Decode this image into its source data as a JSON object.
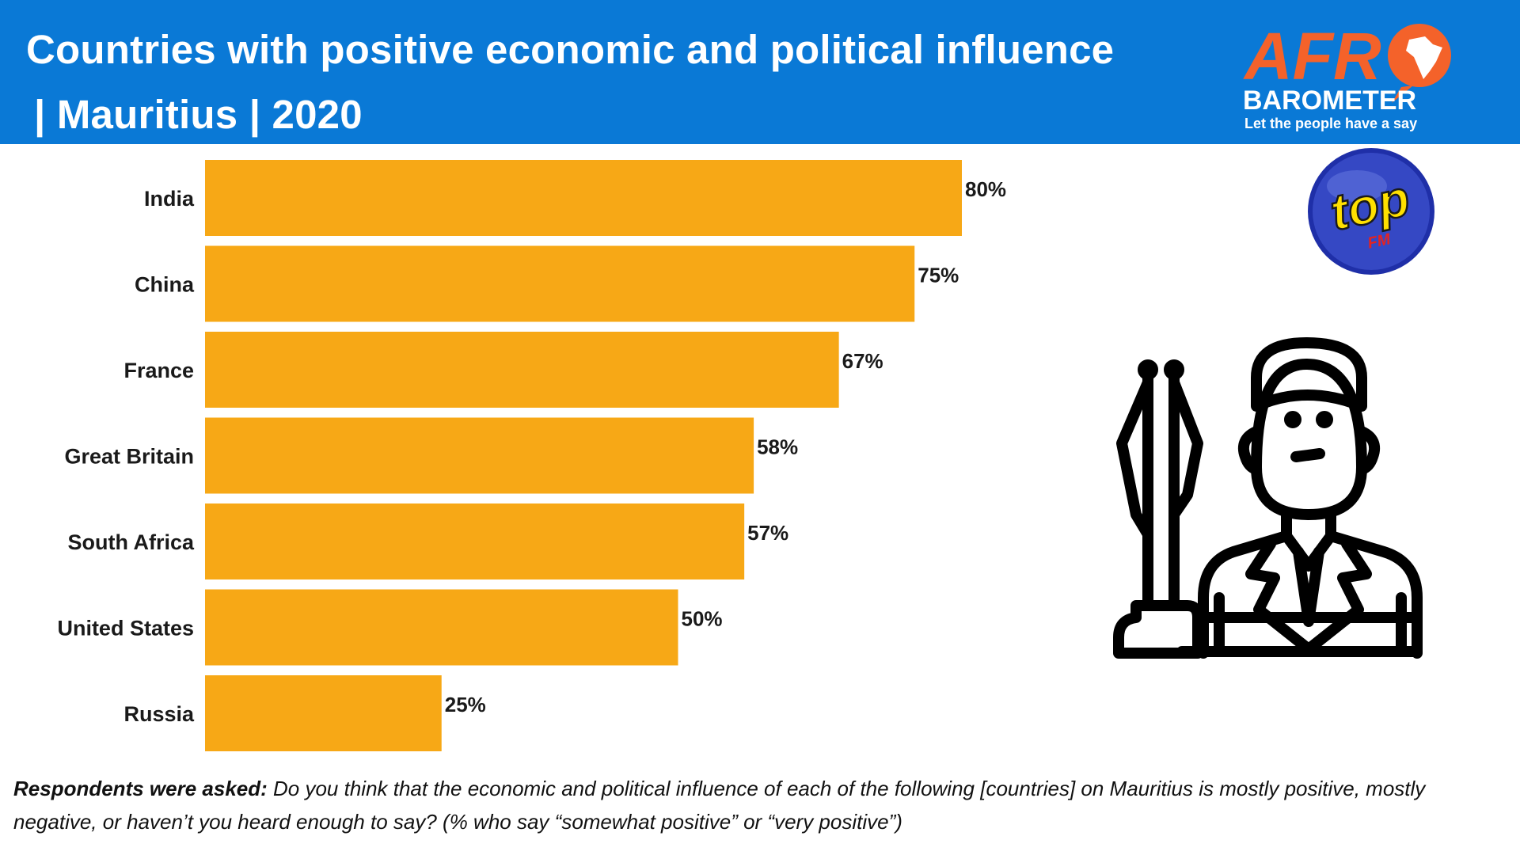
{
  "header": {
    "title_line1": "Countries with positive economic and political influence",
    "title_line2": "| Mauritius | 2020"
  },
  "logos": {
    "afro_part1": "AFR",
    "afro_part2": "BAROMETER",
    "afro_tagline": "Let the people have a say",
    "radio_name": "top",
    "radio_sub": "FM"
  },
  "colors": {
    "header_bg": "#0a79d6",
    "bar": "#f7a816",
    "afro_orange": "#f4622a",
    "radio_blue": "#1f2fa8",
    "radio_yellow": "#ffe000",
    "radio_red": "#e52320"
  },
  "illustration": {
    "icon": "diplomat-with-flags-icon"
  },
  "chart_data": {
    "type": "bar",
    "orientation": "horizontal",
    "categories": [
      "India",
      "China",
      "France",
      "Great Britain",
      "South Africa",
      "United States",
      "Russia"
    ],
    "values": [
      80,
      75,
      67,
      58,
      57,
      50,
      25
    ],
    "value_labels": [
      "80%",
      "75%",
      "67%",
      "58%",
      "57%",
      "50%",
      "25%"
    ],
    "unit": "%",
    "xlim": [
      0,
      100
    ],
    "grid": false,
    "legend": "none"
  },
  "footnote": {
    "lead": "Respondents were asked:",
    "text": " Do you think that the economic and political influence of each of the following [countries] on Mauritius is mostly positive, mostly negative, or haven’t you heard enough to say? (% who say “somewhat positive” or “very positive”)"
  }
}
